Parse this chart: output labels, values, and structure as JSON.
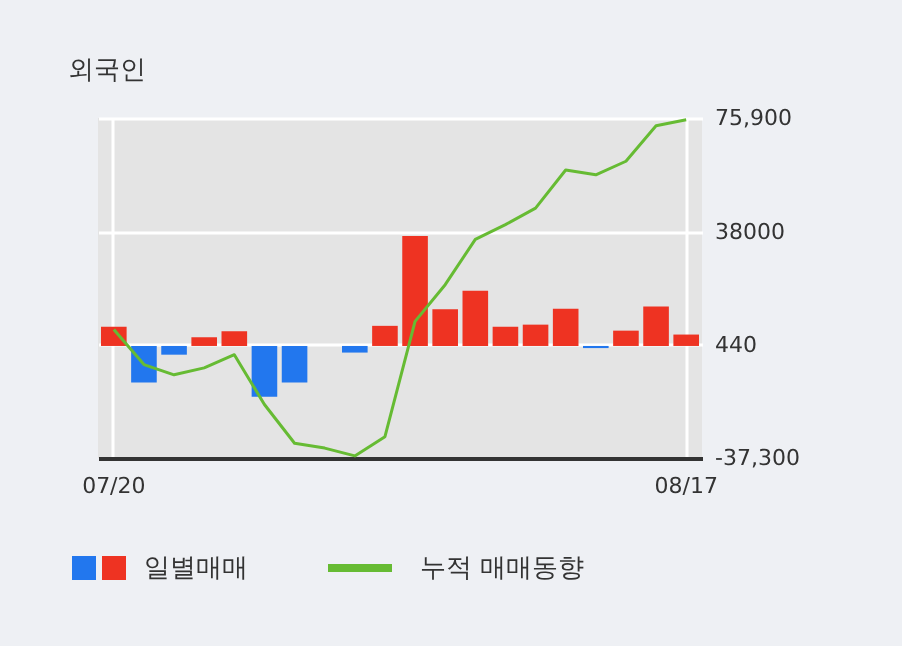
{
  "chart_data": {
    "type": "bar",
    "title": "외국인",
    "categories": [
      "07/20",
      null,
      null,
      null,
      null,
      null,
      null,
      null,
      null,
      null,
      null,
      null,
      null,
      null,
      null,
      null,
      null,
      null,
      null,
      "08/17"
    ],
    "series": [
      {
        "name": "일별매매",
        "colors": [
          "#ee3322",
          "#2277ee",
          "#2277ee",
          "#ee3322",
          "#ee3322",
          "#2277ee",
          "#2277ee",
          "#2277ee",
          "#2277ee",
          "#ee3322",
          "#ee3322",
          "#ee3322",
          "#ee3322",
          "#ee3322",
          "#ee3322",
          "#ee3322",
          "#2277ee",
          "#ee3322",
          "#ee3322",
          "#ee3322"
        ],
        "values": [
          6400,
          -12200,
          -2900,
          2900,
          4900,
          -16900,
          -12200,
          0,
          -2200,
          6700,
          36600,
          12200,
          18400,
          6400,
          7100,
          12400,
          -700,
          5100,
          13100,
          3800
        ]
      },
      {
        "name": "누적 매매동향",
        "type": "line",
        "color": "#66bb33",
        "values": [
          5500,
          -6200,
          -9600,
          -7300,
          -2900,
          -19500,
          -32400,
          -34000,
          -36600,
          -30200,
          8200,
          20400,
          35500,
          40400,
          45900,
          58600,
          57000,
          61500,
          73300,
          75300
        ]
      }
    ],
    "ylim": [
      -37300,
      75900
    ],
    "yticks": [
      {
        "value": -37300,
        "label": "-37,300"
      },
      440,
      38000,
      {
        "value": 75900,
        "label": "75,900"
      }
    ],
    "grid": true,
    "legend": "bottom"
  }
}
